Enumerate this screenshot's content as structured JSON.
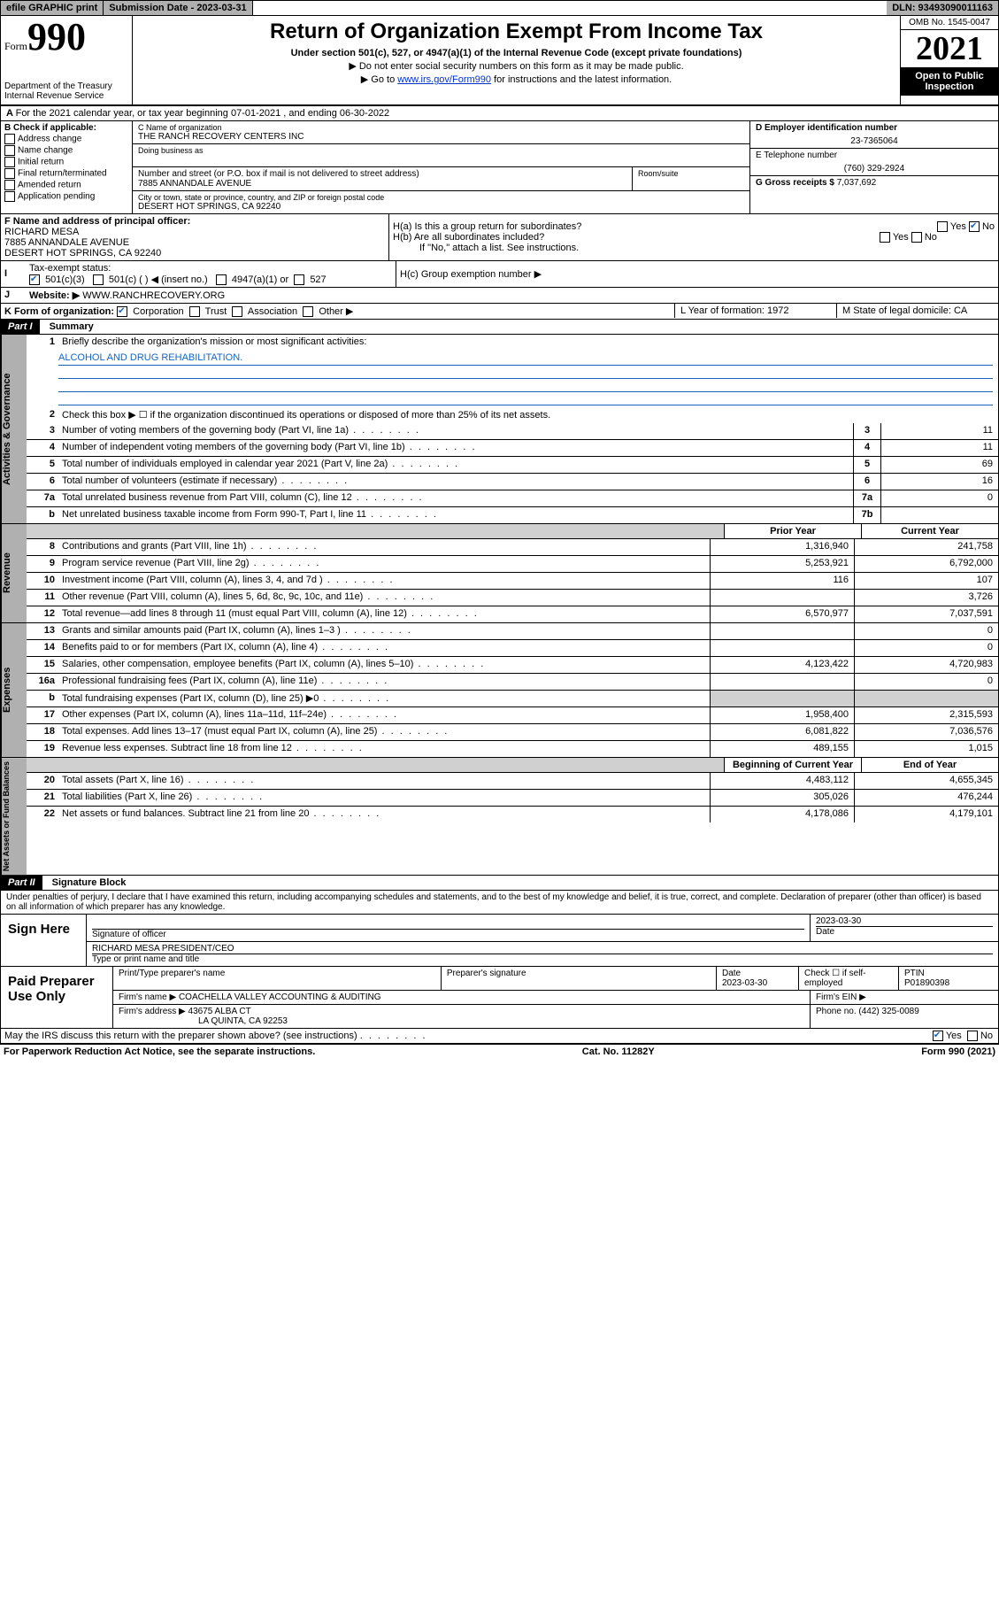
{
  "topbar": {
    "efile": "efile GRAPHIC print",
    "submission_date_label": "Submission Date - 2023-03-31",
    "dln": "DLN: 93493090011163"
  },
  "header": {
    "form_prefix": "Form",
    "form_number": "990",
    "dept": "Department of the Treasury",
    "irs": "Internal Revenue Service",
    "title": "Return of Organization Exempt From Income Tax",
    "subtitle": "Under section 501(c), 527, or 4947(a)(1) of the Internal Revenue Code (except private foundations)",
    "note1": "▶ Do not enter social security numbers on this form as it may be made public.",
    "note2_pre": "▶ Go to ",
    "note2_link": "www.irs.gov/Form990",
    "note2_post": " for instructions and the latest information.",
    "omb": "OMB No. 1545-0047",
    "year": "2021",
    "open": "Open to Public Inspection"
  },
  "lineA": "For the 2021 calendar year, or tax year beginning 07-01-2021    , and ending 06-30-2022",
  "B": {
    "label": "B Check if applicable:",
    "opts": [
      "Address change",
      "Name change",
      "Initial return",
      "Final return/terminated",
      "Amended return",
      "Application pending"
    ]
  },
  "C": {
    "name_lbl": "C Name of organization",
    "name": "THE RANCH RECOVERY CENTERS INC",
    "dba_lbl": "Doing business as",
    "addr_lbl": "Number and street (or P.O. box if mail is not delivered to street address)",
    "addr": "7885 ANNANDALE AVENUE",
    "room_lbl": "Room/suite",
    "city_lbl": "City or town, state or province, country, and ZIP or foreign postal code",
    "city": "DESERT HOT SPRINGS, CA  92240"
  },
  "D": {
    "lbl": "D Employer identification number",
    "val": "23-7365064"
  },
  "E": {
    "lbl": "E Telephone number",
    "val": "(760) 329-2924"
  },
  "G": {
    "lbl": "G Gross receipts $",
    "val": "7,037,692"
  },
  "F": {
    "lbl": "F  Name and address of principal officer:",
    "name": "RICHARD MESA",
    "addr1": "7885 ANNANDALE AVENUE",
    "addr2": "DESERT HOT SPRINGS, CA  92240"
  },
  "H": {
    "a": "H(a)  Is this a group return for subordinates?",
    "b": "H(b)  Are all subordinates included?",
    "bnote": "If \"No,\" attach a list. See instructions.",
    "c": "H(c)  Group exemption number ▶",
    "yes": "Yes",
    "no": "No"
  },
  "I": {
    "lbl": "Tax-exempt status:",
    "o1": "501(c)(3)",
    "o2": "501(c) (   ) ◀ (insert no.)",
    "o3": "4947(a)(1) or",
    "o4": "527"
  },
  "J": {
    "lbl": "Website: ▶",
    "val": "WWW.RANCHRECOVERY.ORG"
  },
  "K": {
    "lbl": "K Form of organization:",
    "o1": "Corporation",
    "o2": "Trust",
    "o3": "Association",
    "o4": "Other ▶"
  },
  "L": {
    "lbl": "L Year of formation: 1972"
  },
  "M": {
    "lbl": "M State of legal domicile: CA"
  },
  "partI": {
    "header": "Part I",
    "title": "Summary"
  },
  "s1": {
    "q1": "Briefly describe the organization's mission or most significant activities:",
    "mission": "ALCOHOL AND DRUG REHABILITATION.",
    "q2": "Check this box ▶ ☐  if the organization discontinued its operations or disposed of more than 25% of its net assets.",
    "rows": [
      {
        "n": "3",
        "d": "Number of voting members of the governing body (Part VI, line 1a)",
        "bn": "3",
        "bv": "11"
      },
      {
        "n": "4",
        "d": "Number of independent voting members of the governing body (Part VI, line 1b)",
        "bn": "4",
        "bv": "11"
      },
      {
        "n": "5",
        "d": "Total number of individuals employed in calendar year 2021 (Part V, line 2a)",
        "bn": "5",
        "bv": "69"
      },
      {
        "n": "6",
        "d": "Total number of volunteers (estimate if necessary)",
        "bn": "6",
        "bv": "16"
      },
      {
        "n": "7a",
        "d": "Total unrelated business revenue from Part VIII, column (C), line 12",
        "bn": "7a",
        "bv": "0"
      },
      {
        "n": "b",
        "d": "Net unrelated business taxable income from Form 990-T, Part I, line 11",
        "bn": "7b",
        "bv": ""
      }
    ]
  },
  "colheads": {
    "prior": "Prior Year",
    "current": "Current Year"
  },
  "revenue": {
    "label": "Revenue",
    "rows": [
      {
        "n": "8",
        "d": "Contributions and grants (Part VIII, line 1h)",
        "c1": "1,316,940",
        "c2": "241,758"
      },
      {
        "n": "9",
        "d": "Program service revenue (Part VIII, line 2g)",
        "c1": "5,253,921",
        "c2": "6,792,000"
      },
      {
        "n": "10",
        "d": "Investment income (Part VIII, column (A), lines 3, 4, and 7d )",
        "c1": "116",
        "c2": "107"
      },
      {
        "n": "11",
        "d": "Other revenue (Part VIII, column (A), lines 5, 6d, 8c, 9c, 10c, and 11e)",
        "c1": "",
        "c2": "3,726"
      },
      {
        "n": "12",
        "d": "Total revenue—add lines 8 through 11 (must equal Part VIII, column (A), line 12)",
        "c1": "6,570,977",
        "c2": "7,037,591"
      }
    ]
  },
  "expenses": {
    "label": "Expenses",
    "rows": [
      {
        "n": "13",
        "d": "Grants and similar amounts paid (Part IX, column (A), lines 1–3 )",
        "c1": "",
        "c2": "0"
      },
      {
        "n": "14",
        "d": "Benefits paid to or for members (Part IX, column (A), line 4)",
        "c1": "",
        "c2": "0"
      },
      {
        "n": "15",
        "d": "Salaries, other compensation, employee benefits (Part IX, column (A), lines 5–10)",
        "c1": "4,123,422",
        "c2": "4,720,983"
      },
      {
        "n": "16a",
        "d": "Professional fundraising fees (Part IX, column (A), line 11e)",
        "c1": "",
        "c2": "0"
      },
      {
        "n": "b",
        "d": "Total fundraising expenses (Part IX, column (D), line 25) ▶0",
        "c1": "shade",
        "c2": "shade"
      },
      {
        "n": "17",
        "d": "Other expenses (Part IX, column (A), lines 11a–11d, 11f–24e)",
        "c1": "1,958,400",
        "c2": "2,315,593"
      },
      {
        "n": "18",
        "d": "Total expenses. Add lines 13–17 (must equal Part IX, column (A), line 25)",
        "c1": "6,081,822",
        "c2": "7,036,576"
      },
      {
        "n": "19",
        "d": "Revenue less expenses. Subtract line 18 from line 12",
        "c1": "489,155",
        "c2": "1,015"
      }
    ]
  },
  "colheads2": {
    "begin": "Beginning of Current Year",
    "end": "End of Year"
  },
  "netassets": {
    "label": "Net Assets or Fund Balances",
    "rows": [
      {
        "n": "20",
        "d": "Total assets (Part X, line 16)",
        "c1": "4,483,112",
        "c2": "4,655,345"
      },
      {
        "n": "21",
        "d": "Total liabilities (Part X, line 26)",
        "c1": "305,026",
        "c2": "476,244"
      },
      {
        "n": "22",
        "d": "Net assets or fund balances. Subtract line 21 from line 20",
        "c1": "4,178,086",
        "c2": "4,179,101"
      }
    ]
  },
  "partII": {
    "header": "Part II",
    "title": "Signature Block"
  },
  "declare": "Under penalties of perjury, I declare that I have examined this return, including accompanying schedules and statements, and to the best of my knowledge and belief, it is true, correct, and complete. Declaration of preparer (other than officer) is based on all information of which preparer has any knowledge.",
  "sign": {
    "here": "Sign Here",
    "sigoff": "Signature of officer",
    "date": "Date",
    "dateval": "2023-03-30",
    "name": "RICHARD MESA  PRESIDENT/CEO",
    "nametitle": "Type or print name and title"
  },
  "paid": {
    "label": "Paid Preparer Use Only",
    "h1": "Print/Type preparer's name",
    "h2": "Preparer's signature",
    "h3": "Date",
    "h4": "Check ☐ if self-employed",
    "h5": "PTIN",
    "dateval": "2023-03-30",
    "ptin": "P01890398",
    "firmname_lbl": "Firm's name    ▶",
    "firmname": "COACHELLA VALLEY ACCOUNTING & AUDITING",
    "ein_lbl": "Firm's EIN ▶",
    "firmaddr_lbl": "Firm's address ▶",
    "firmaddr1": "43675 ALBA CT",
    "firmaddr2": "LA QUINTA, CA  92253",
    "phone_lbl": "Phone no.",
    "phone": "(442) 325-0089"
  },
  "discuss": {
    "q": "May the IRS discuss this return with the preparer shown above? (see instructions)",
    "yes": "Yes",
    "no": "No"
  },
  "footer": {
    "left": "For Paperwork Reduction Act Notice, see the separate instructions.",
    "mid": "Cat. No. 11282Y",
    "right": "Form 990 (2021)"
  }
}
